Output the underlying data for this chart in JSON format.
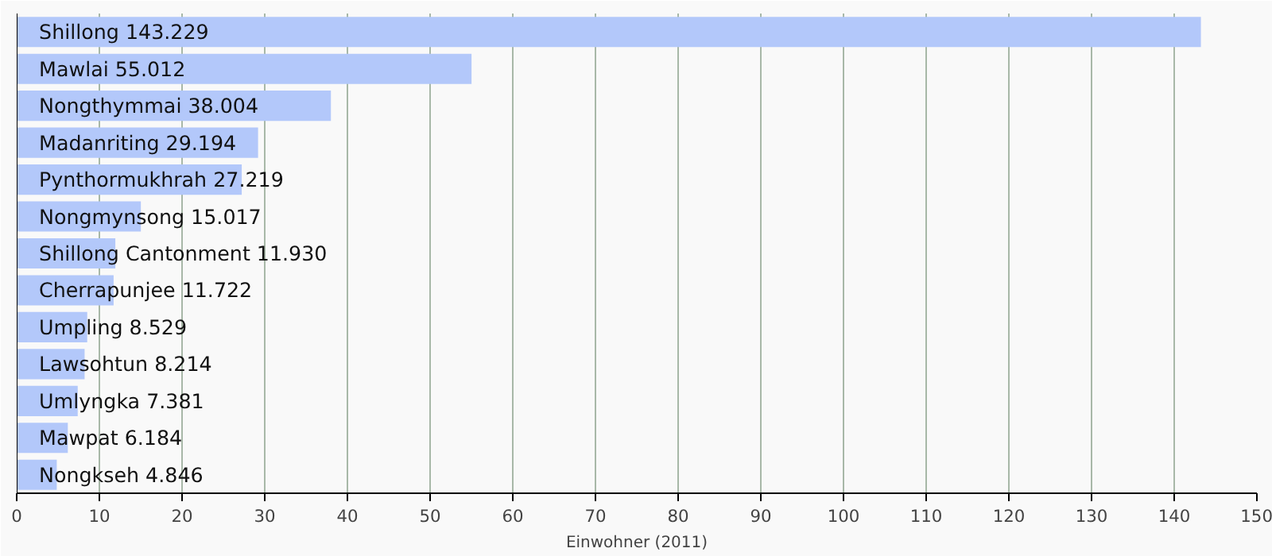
{
  "chart_data": {
    "type": "bar",
    "orientation": "horizontal",
    "xlabel": "Einwohner (2011)",
    "categories": [
      "Shillong",
      "Mawlai",
      "Nongthymmai",
      "Madanriting",
      "Pynthormukhrah",
      "Nongmynsong",
      "Shillong Cantonment",
      "Cherrapunjee",
      "Umpling",
      "Lawsohtun",
      "Umlyngka",
      "Mawpat",
      "Nongkseh"
    ],
    "values": [
      143.229,
      55.012,
      38.004,
      29.194,
      27.219,
      15.017,
      11.93,
      11.722,
      8.529,
      8.214,
      7.381,
      6.184,
      4.846
    ],
    "value_labels": [
      "143.229",
      "55.012",
      "38.004",
      "29.194",
      "27.219",
      "15.017",
      "11.930",
      "11.722",
      "8.529",
      "8.214",
      "7.381",
      "6.184",
      "4.846"
    ],
    "color": "#b3c8fa",
    "xlim": [
      0,
      150
    ],
    "xticks": [
      0,
      10,
      20,
      30,
      40,
      50,
      60,
      70,
      80,
      90,
      100,
      110,
      120,
      130,
      140,
      150
    ],
    "grid": "x"
  }
}
